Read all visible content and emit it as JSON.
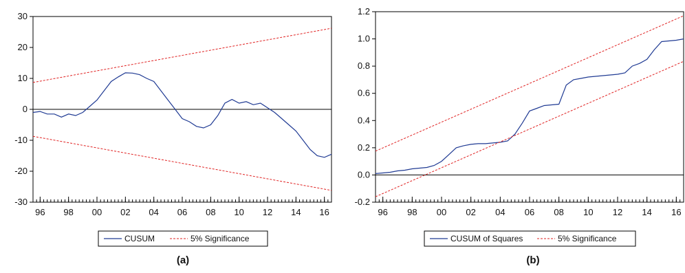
{
  "colors": {
    "series": "#1f3a93",
    "bounds": "#e02020",
    "zero": "#000000",
    "axis": "#000000"
  },
  "chart_data": [
    {
      "panel_label": "(a)",
      "type": "line",
      "xlim": [
        1995.5,
        2016.5
      ],
      "ylim": [
        -30,
        30
      ],
      "yticks": [
        30,
        20,
        10,
        0,
        -10,
        -20,
        -30
      ],
      "ytick_labels": [
        "30",
        "20",
        "10",
        "0",
        "-10",
        "-20",
        "-30"
      ],
      "xticks": [
        1996,
        1998,
        2000,
        2002,
        2004,
        2006,
        2008,
        2010,
        2012,
        2014,
        2016
      ],
      "xtick_labels": [
        "96",
        "98",
        "00",
        "02",
        "04",
        "06",
        "08",
        "10",
        "12",
        "14",
        "16"
      ],
      "zero_line": 0,
      "legend": [
        "CUSUM",
        "5% Significance"
      ],
      "series": [
        {
          "name": "CUSUM",
          "x": [
            1995.5,
            1996.0,
            1996.5,
            1997.0,
            1997.5,
            1998.0,
            1998.5,
            1999.0,
            1999.5,
            2000.0,
            2000.5,
            2001.0,
            2001.5,
            2002.0,
            2002.5,
            2003.0,
            2003.5,
            2004.0,
            2004.5,
            2005.0,
            2005.5,
            2006.0,
            2006.5,
            2007.0,
            2007.5,
            2008.0,
            2008.5,
            2009.0,
            2009.5,
            2010.0,
            2010.5,
            2011.0,
            2011.5,
            2012.0,
            2012.5,
            2013.0,
            2013.5,
            2014.0,
            2014.5,
            2015.0,
            2015.5,
            2016.0,
            2016.5
          ],
          "y": [
            -1,
            -0.7,
            -1.5,
            -1.5,
            -2.5,
            -1.5,
            -2,
            -1,
            1,
            3,
            6,
            9,
            10.5,
            11.8,
            11.7,
            11.2,
            10,
            9,
            6,
            3,
            0,
            -3,
            -4,
            -5.5,
            -6,
            -5,
            -2,
            2,
            3.2,
            2,
            2.5,
            1.5,
            2,
            0.5,
            -1,
            -3,
            -5,
            -7,
            -10,
            -13,
            -15,
            -15.5,
            -14.5
          ]
        },
        {
          "name": "5% Significance",
          "x": [
            1995.5,
            2016.5
          ],
          "y": [
            8.7,
            26.2
          ]
        },
        {
          "name": "5% Significance",
          "x": [
            1995.5,
            2016.5
          ],
          "y": [
            -8.7,
            -26.2
          ]
        }
      ]
    },
    {
      "panel_label": "(b)",
      "type": "line",
      "xlim": [
        1995.5,
        2016.5
      ],
      "ylim": [
        -0.2,
        1.2
      ],
      "yticks": [
        1.2,
        1.0,
        0.8,
        0.6,
        0.4,
        0.2,
        0.0,
        -0.2
      ],
      "ytick_labels": [
        "1.2",
        "1.0",
        "0.8",
        "0.6",
        "0.4",
        "0.2",
        "0.0",
        "-0.2"
      ],
      "xticks": [
        1996,
        1998,
        2000,
        2002,
        2004,
        2006,
        2008,
        2010,
        2012,
        2014,
        2016
      ],
      "xtick_labels": [
        "96",
        "98",
        "00",
        "02",
        "04",
        "06",
        "08",
        "10",
        "12",
        "14",
        "16"
      ],
      "zero_line": 0,
      "legend": [
        "CUSUM of Squares",
        "5% Significance"
      ],
      "series": [
        {
          "name": "CUSUM of Squares",
          "x": [
            1995.5,
            1996.0,
            1996.5,
            1997.0,
            1997.5,
            1998.0,
            1998.5,
            1999.0,
            1999.5,
            2000.0,
            2000.5,
            2001.0,
            2001.5,
            2002.0,
            2002.5,
            2003.0,
            2003.5,
            2004.0,
            2004.5,
            2005.0,
            2005.5,
            2006.0,
            2006.5,
            2007.0,
            2007.5,
            2008.0,
            2008.5,
            2009.0,
            2009.5,
            2010.0,
            2010.5,
            2011.0,
            2011.5,
            2012.0,
            2012.5,
            2013.0,
            2013.5,
            2014.0,
            2014.5,
            2015.0,
            2015.5,
            2016.0,
            2016.5
          ],
          "y": [
            0.01,
            0.015,
            0.02,
            0.03,
            0.035,
            0.045,
            0.05,
            0.055,
            0.07,
            0.1,
            0.15,
            0.2,
            0.215,
            0.225,
            0.23,
            0.23,
            0.235,
            0.24,
            0.25,
            0.3,
            0.38,
            0.47,
            0.49,
            0.51,
            0.515,
            0.52,
            0.66,
            0.7,
            0.71,
            0.72,
            0.725,
            0.73,
            0.735,
            0.74,
            0.75,
            0.8,
            0.82,
            0.85,
            0.92,
            0.98,
            0.985,
            0.99,
            1.0
          ]
        },
        {
          "name": "5% Significance",
          "x": [
            1995.5,
            2016.5
          ],
          "y": [
            0.175,
            1.17
          ]
        },
        {
          "name": "5% Significance",
          "x": [
            1995.5,
            2016.5
          ],
          "y": [
            -0.16,
            0.835
          ]
        }
      ]
    }
  ]
}
